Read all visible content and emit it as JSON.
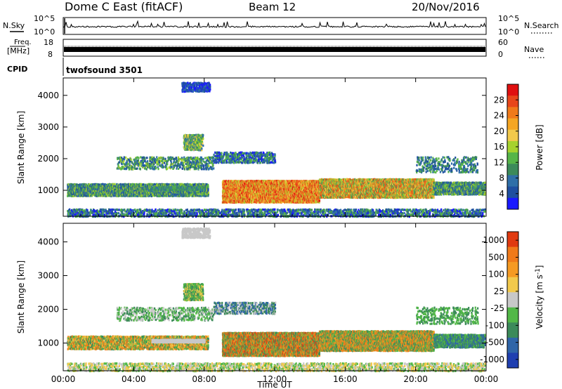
{
  "header": {
    "title": "Dome C East (fitACF)",
    "beam": "Beam 12",
    "date": "20/Nov/2016"
  },
  "aux_panels": {
    "nsky_label": "N.Sky",
    "nsky_ticks": [
      "10^5",
      "10^0"
    ],
    "nsearch_label": "N.Search",
    "nsearch_ticks": [
      "10^5",
      "10^0"
    ],
    "freq_label": "Freq.",
    "freq_unit": "[MHz]",
    "freq_ticks": [
      "18",
      "8"
    ],
    "nave_label": "Nave",
    "nave_ticks": [
      "60",
      "0"
    ],
    "cpid_label": "CPID",
    "cpid_value": "twofsound 3501"
  },
  "colors": {
    "power": [
      "#1a1aff",
      "#1f4fa0",
      "#2f6fa8",
      "#3c8a5a",
      "#56b548",
      "#a6d22e",
      "#f2c94c",
      "#f5a623",
      "#f07a1a",
      "#e8461a",
      "#e01010"
    ],
    "velocity": [
      "#1f3fb0",
      "#2f65a8",
      "#3c8a5a",
      "#52b847",
      "#c8c8c8",
      "#f2c94c",
      "#f59a23",
      "#f07a1a",
      "#e03a10"
    ]
  },
  "chart_data": [
    {
      "type": "heatmap",
      "ylabel": "Slant Range [km]",
      "xlabel": "",
      "x_ticks": [
        "00:00",
        "04:00",
        "08:00",
        "12:00",
        "16:00",
        "20:00",
        "00:00"
      ],
      "y_ticks": [
        "1000",
        "2000",
        "3000",
        "4000"
      ],
      "ylim": [
        180,
        4550
      ],
      "colorbar_label": "Power [dB]",
      "colorbar_ticks": [
        "4",
        "8",
        "12",
        "16",
        "20",
        "24",
        "28"
      ],
      "clim": [
        0,
        32
      ]
    },
    {
      "type": "heatmap",
      "ylabel": "Slant Range [km]",
      "xlabel": "Time UT",
      "x_ticks": [
        "00:00",
        "04:00",
        "08:00",
        "12:00",
        "16:00",
        "20:00",
        "00:00"
      ],
      "y_ticks": [
        "1000",
        "2000",
        "3000",
        "4000"
      ],
      "ylim": [
        180,
        4550
      ],
      "colorbar_label": "Velocity [m s-1]",
      "colorbar_ticks": [
        "1000",
        "500",
        "100",
        "25",
        "-25",
        "-100",
        "-500",
        "-1000"
      ]
    }
  ]
}
